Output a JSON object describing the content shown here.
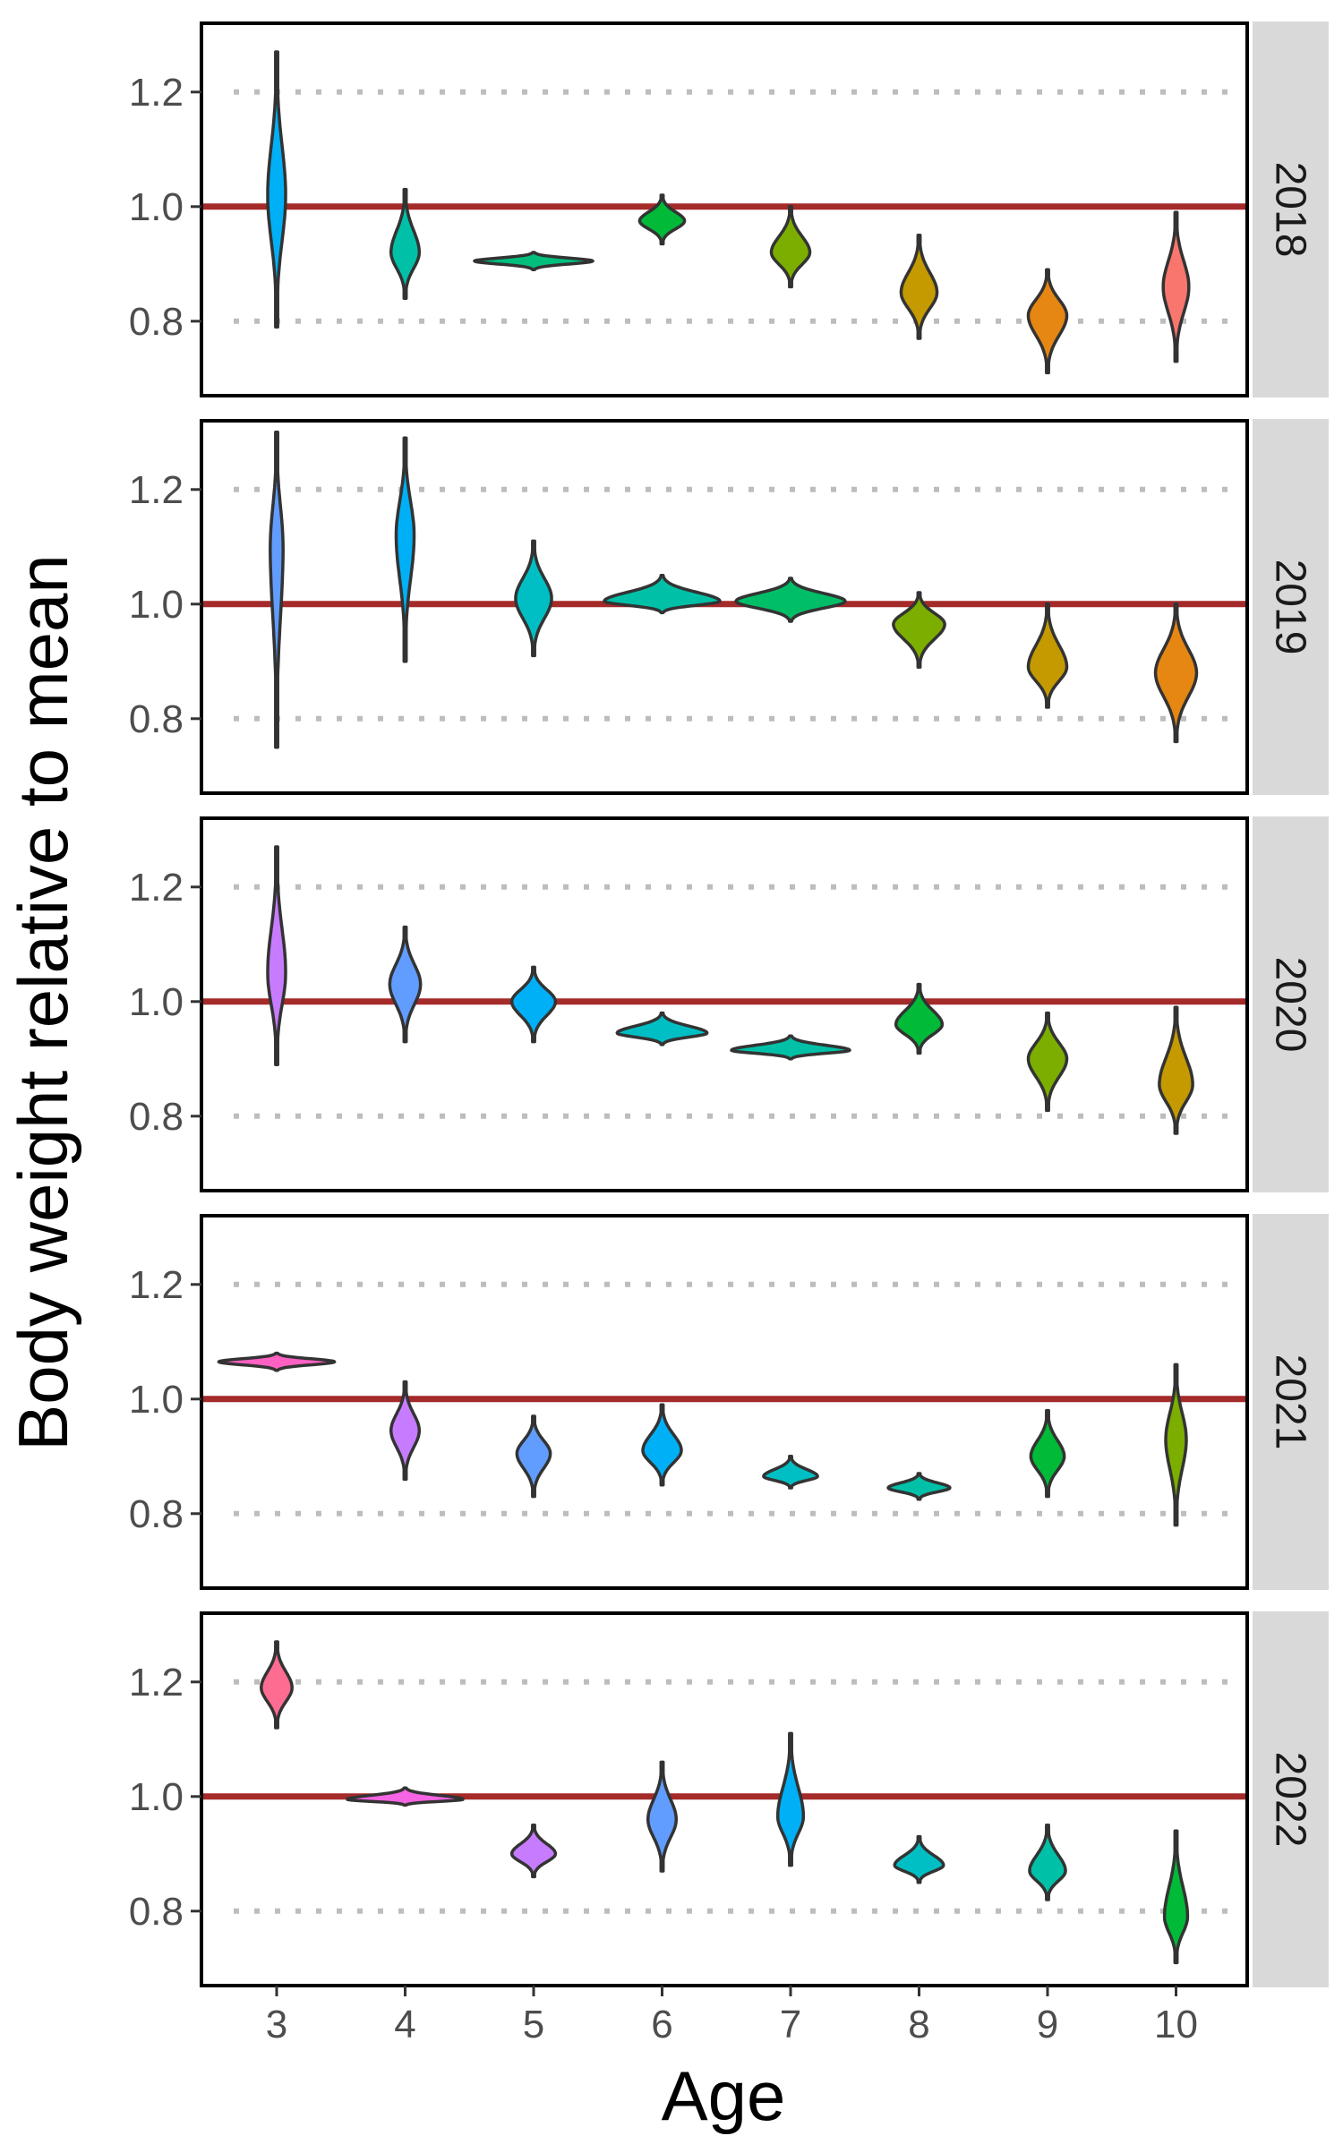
{
  "chart_data": {
    "type": "violin",
    "xlabel": "Age",
    "ylabel": "Body weight relative to mean",
    "x": [
      3,
      4,
      5,
      6,
      7,
      8,
      9,
      10
    ],
    "ylim": [
      0.67,
      1.32
    ],
    "yticks": [
      0.8,
      1.0,
      1.2
    ],
    "ytick_labels": [
      "0.8",
      "1.0",
      "1.2"
    ],
    "reference_line": 1.0,
    "dotted_gridlines": [
      0.8,
      1.2
    ],
    "grid": "dotted at 0.8 and 1.2",
    "colors": {
      "reference_line": "#a52a2a",
      "gridline": "#bdbdbd",
      "strip_background": "#d9d9d9",
      "violin_outline": "#333333"
    },
    "panels": [
      {
        "label": "2018",
        "violins": [
          {
            "age": 3,
            "center": 1.02,
            "min": 0.79,
            "max": 1.27,
            "width": 0.14,
            "color": "#00b0f6"
          },
          {
            "age": 4,
            "center": 0.92,
            "min": 0.84,
            "max": 1.03,
            "width": 0.22,
            "color": "#00c1a7"
          },
          {
            "age": 5,
            "center": 0.905,
            "min": 0.89,
            "max": 0.92,
            "width": 0.92,
            "color": "#00bf7d"
          },
          {
            "age": 6,
            "center": 0.975,
            "min": 0.935,
            "max": 1.02,
            "width": 0.35,
            "color": "#00ba38"
          },
          {
            "age": 7,
            "center": 0.92,
            "min": 0.86,
            "max": 1.0,
            "width": 0.3,
            "color": "#7cae00"
          },
          {
            "age": 8,
            "center": 0.85,
            "min": 0.77,
            "max": 0.95,
            "width": 0.28,
            "color": "#c49a00"
          },
          {
            "age": 9,
            "center": 0.81,
            "min": 0.71,
            "max": 0.89,
            "width": 0.3,
            "color": "#e68613"
          },
          {
            "age": 10,
            "center": 0.86,
            "min": 0.73,
            "max": 0.99,
            "width": 0.2,
            "color": "#f8766d"
          }
        ]
      },
      {
        "label": "2019",
        "violins": [
          {
            "age": 3,
            "center": 1.1,
            "min": 0.75,
            "max": 1.3,
            "width": 0.1,
            "color": "#619cff"
          },
          {
            "age": 4,
            "center": 1.12,
            "min": 0.9,
            "max": 1.29,
            "width": 0.14,
            "color": "#00b0f6"
          },
          {
            "age": 5,
            "center": 1.01,
            "min": 0.91,
            "max": 1.11,
            "width": 0.28,
            "color": "#00bfc4"
          },
          {
            "age": 6,
            "center": 1.005,
            "min": 0.985,
            "max": 1.05,
            "width": 0.9,
            "color": "#00c1a7"
          },
          {
            "age": 7,
            "center": 1.005,
            "min": 0.97,
            "max": 1.045,
            "width": 0.85,
            "color": "#00be67"
          },
          {
            "age": 8,
            "center": 0.965,
            "min": 0.89,
            "max": 1.02,
            "width": 0.4,
            "color": "#7cae00"
          },
          {
            "age": 9,
            "center": 0.89,
            "min": 0.82,
            "max": 1.0,
            "width": 0.3,
            "color": "#c49a00"
          },
          {
            "age": 10,
            "center": 0.88,
            "min": 0.76,
            "max": 1.0,
            "width": 0.32,
            "color": "#e68613"
          }
        ]
      },
      {
        "label": "2020",
        "violins": [
          {
            "age": 3,
            "center": 1.05,
            "min": 0.89,
            "max": 1.27,
            "width": 0.14,
            "color": "#c77cff"
          },
          {
            "age": 4,
            "center": 1.03,
            "min": 0.93,
            "max": 1.13,
            "width": 0.24,
            "color": "#619cff"
          },
          {
            "age": 5,
            "center": 1.0,
            "min": 0.93,
            "max": 1.06,
            "width": 0.34,
            "color": "#00b0f6"
          },
          {
            "age": 6,
            "center": 0.945,
            "min": 0.925,
            "max": 0.98,
            "width": 0.7,
            "color": "#00bfc4"
          },
          {
            "age": 7,
            "center": 0.915,
            "min": 0.9,
            "max": 0.94,
            "width": 0.92,
            "color": "#00c1a7"
          },
          {
            "age": 8,
            "center": 0.96,
            "min": 0.91,
            "max": 1.03,
            "width": 0.36,
            "color": "#00ba38"
          },
          {
            "age": 9,
            "center": 0.9,
            "min": 0.81,
            "max": 0.98,
            "width": 0.3,
            "color": "#7cae00"
          },
          {
            "age": 10,
            "center": 0.855,
            "min": 0.77,
            "max": 0.99,
            "width": 0.26,
            "color": "#c49a00"
          }
        ]
      },
      {
        "label": "2021",
        "violins": [
          {
            "age": 3,
            "center": 1.065,
            "min": 1.05,
            "max": 1.08,
            "width": 0.9,
            "color": "#ff61c3"
          },
          {
            "age": 4,
            "center": 0.945,
            "min": 0.86,
            "max": 1.03,
            "width": 0.22,
            "color": "#c77cff"
          },
          {
            "age": 5,
            "center": 0.905,
            "min": 0.83,
            "max": 0.97,
            "width": 0.26,
            "color": "#619cff"
          },
          {
            "age": 6,
            "center": 0.91,
            "min": 0.85,
            "max": 0.99,
            "width": 0.3,
            "color": "#00b0f6"
          },
          {
            "age": 7,
            "center": 0.865,
            "min": 0.845,
            "max": 0.9,
            "width": 0.42,
            "color": "#00bfc4"
          },
          {
            "age": 8,
            "center": 0.845,
            "min": 0.825,
            "max": 0.87,
            "width": 0.48,
            "color": "#00c1a7"
          },
          {
            "age": 9,
            "center": 0.9,
            "min": 0.83,
            "max": 0.98,
            "width": 0.26,
            "color": "#00ba38"
          },
          {
            "age": 10,
            "center": 0.93,
            "min": 0.78,
            "max": 1.06,
            "width": 0.16,
            "color": "#7cae00"
          }
        ]
      },
      {
        "label": "2022",
        "violins": [
          {
            "age": 3,
            "center": 1.19,
            "min": 1.12,
            "max": 1.27,
            "width": 0.24,
            "color": "#ff6c91"
          },
          {
            "age": 4,
            "center": 0.995,
            "min": 0.985,
            "max": 1.015,
            "width": 0.9,
            "color": "#f564e3"
          },
          {
            "age": 5,
            "center": 0.9,
            "min": 0.86,
            "max": 0.95,
            "width": 0.34,
            "color": "#c77cff"
          },
          {
            "age": 6,
            "center": 0.96,
            "min": 0.87,
            "max": 1.06,
            "width": 0.22,
            "color": "#619cff"
          },
          {
            "age": 7,
            "center": 0.965,
            "min": 0.88,
            "max": 1.11,
            "width": 0.2,
            "color": "#00b0f6"
          },
          {
            "age": 8,
            "center": 0.88,
            "min": 0.85,
            "max": 0.93,
            "width": 0.38,
            "color": "#00bfc4"
          },
          {
            "age": 9,
            "center": 0.87,
            "min": 0.82,
            "max": 0.95,
            "width": 0.28,
            "color": "#00c1a7"
          },
          {
            "age": 10,
            "center": 0.79,
            "min": 0.71,
            "max": 0.94,
            "width": 0.18,
            "color": "#00ba38"
          }
        ]
      }
    ]
  }
}
